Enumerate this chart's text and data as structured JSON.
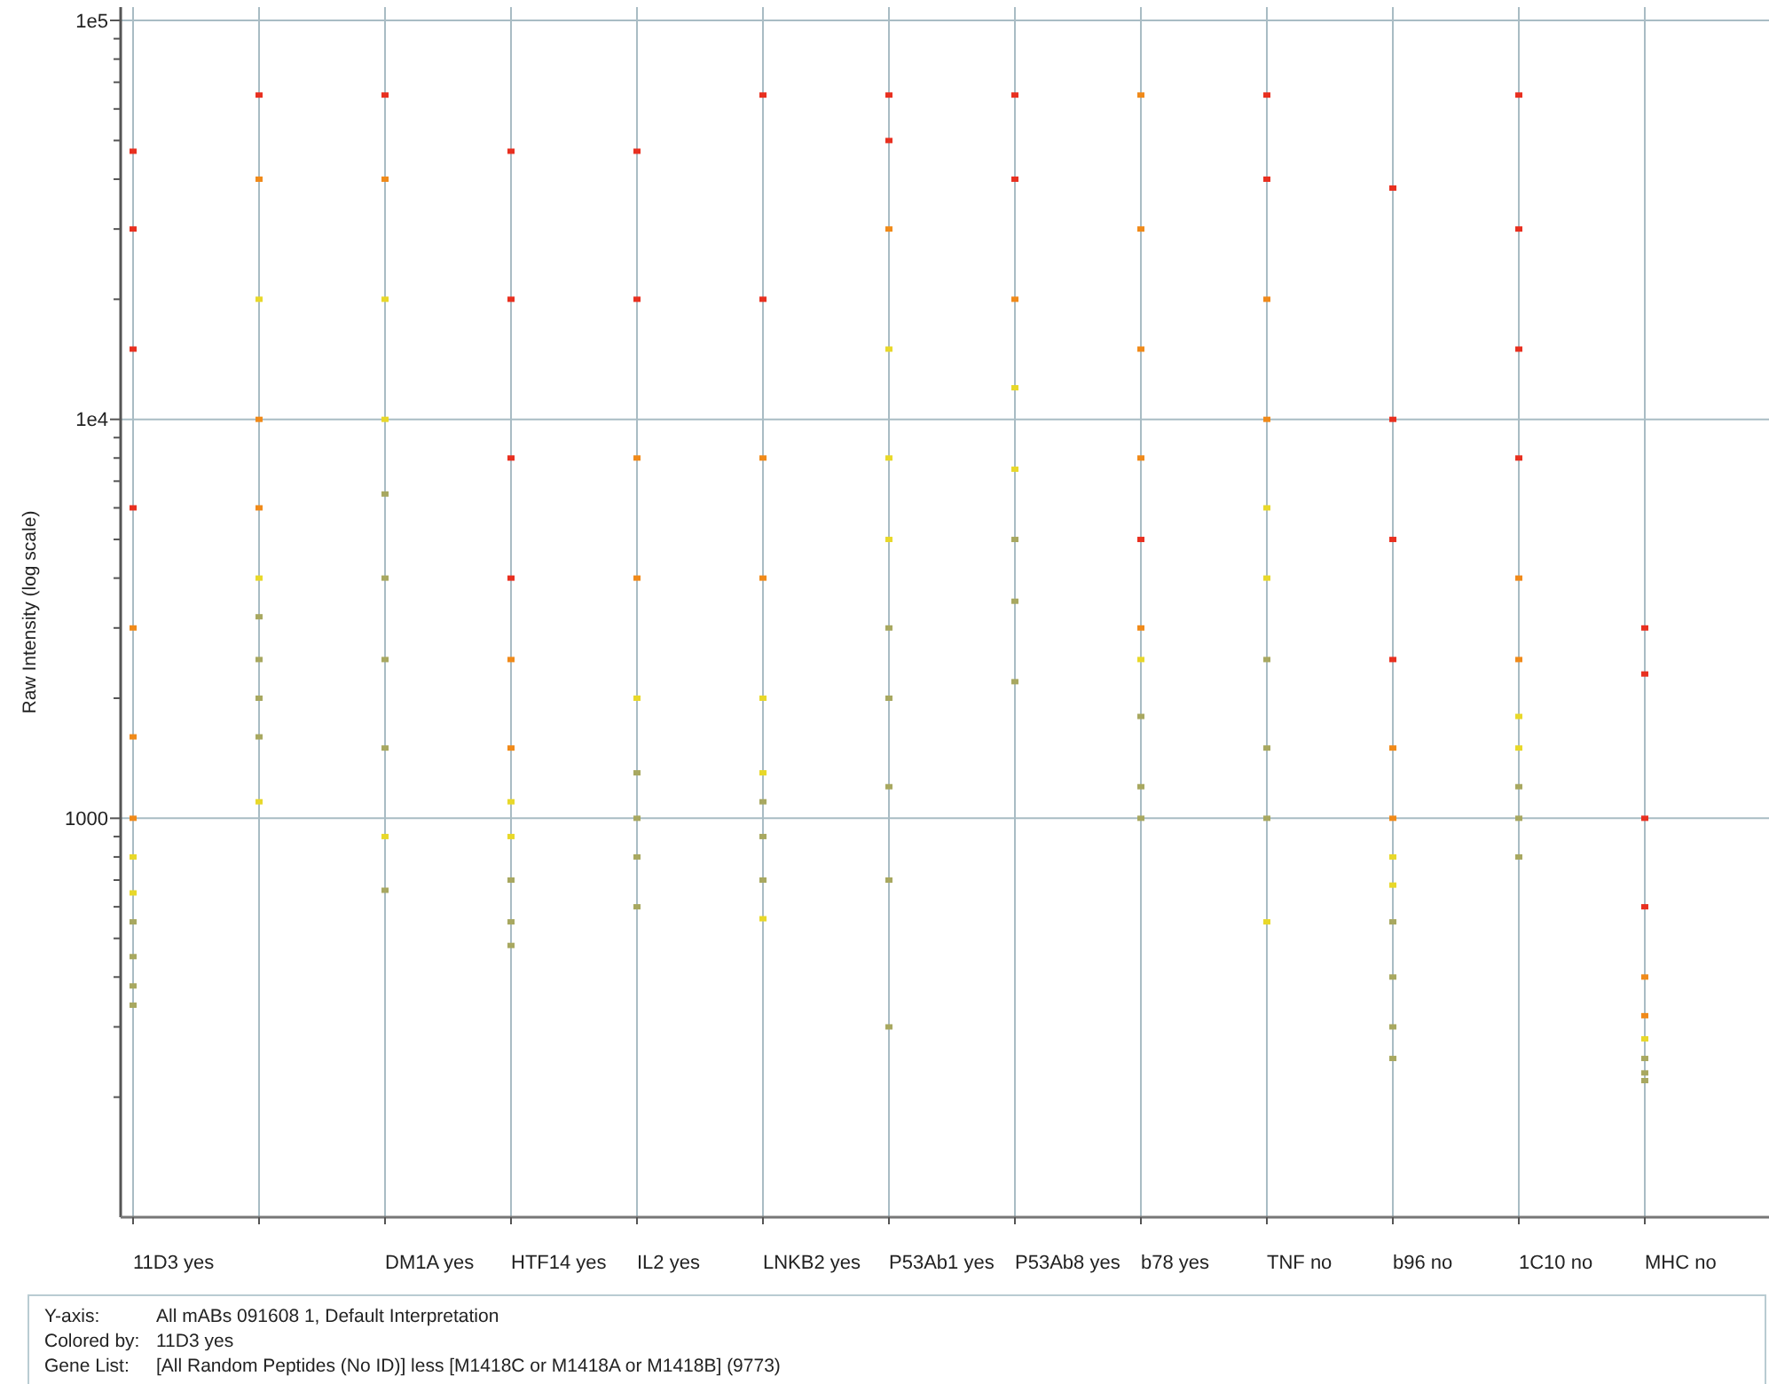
{
  "chart_data": {
    "type": "scatter",
    "ylabel": "Raw Intensity (log scale)",
    "log": true,
    "grid": true,
    "marker": "square",
    "categories": [
      "11D3 yes",
      null,
      "DM1A yes",
      "HTF14 yes",
      "IL2 yes",
      "LNKB2 yes",
      "P53Ab1 yes",
      "P53Ab8 yes",
      "b78 yes",
      "TNF no",
      "b96 no",
      "1C10 no",
      "MHC no"
    ],
    "ylim": [
      100,
      108000
    ],
    "yticks": [
      {
        "value": 200,
        "label": null
      },
      {
        "value": 300,
        "label": null
      },
      {
        "value": 400,
        "label": null
      },
      {
        "value": 500,
        "label": null
      },
      {
        "value": 600,
        "label": null
      },
      {
        "value": 700,
        "label": null
      },
      {
        "value": 800,
        "label": null
      },
      {
        "value": 900,
        "label": null
      },
      1000,
      {
        "value": 2000,
        "label": null
      },
      {
        "value": 3000,
        "label": null
      },
      {
        "value": 4000,
        "label": null
      },
      {
        "value": 5000,
        "label": null
      },
      {
        "value": 6000,
        "label": null
      },
      {
        "value": 7000,
        "label": null
      },
      {
        "value": 8000,
        "label": null
      },
      {
        "value": 9000,
        "label": null
      },
      {
        "value": 10000,
        "label": "1e4"
      },
      {
        "value": 20000,
        "label": null
      },
      {
        "value": 30000,
        "label": null
      },
      {
        "value": 40000,
        "label": null
      },
      {
        "value": 50000,
        "label": null
      },
      {
        "value": 60000,
        "label": null
      },
      {
        "value": 70000,
        "label": null
      },
      {
        "value": 80000,
        "label": null
      },
      {
        "value": 90000,
        "label": null
      },
      {
        "value": 100000,
        "label": "1e5"
      }
    ],
    "series": [
      {
        "values": [
          47000,
          65000,
          65000,
          47000,
          47000,
          65000,
          65000,
          65000,
          65000,
          65000,
          38000,
          65000,
          3000
        ],
        "colors": [
          "#e83020",
          "#e83020",
          "#e83020",
          "#e83020",
          "#e83020",
          "#e83020",
          "#e83020",
          "#e83020",
          "#f08a1a",
          "#e83020",
          "#e83020",
          "#e83020",
          "#e83020"
        ]
      },
      {
        "values": [
          30000,
          40000,
          40000,
          20000,
          20000,
          20000,
          50000,
          40000,
          30000,
          40000,
          10000,
          30000,
          2300
        ],
        "colors": [
          "#e83020",
          "#f08a1a",
          "#f08a1a",
          "#e83020",
          "#e83020",
          "#e83020",
          "#e83020",
          "#e83020",
          "#f08a1a",
          "#e83020",
          "#e83020",
          "#e83020",
          "#e83020"
        ]
      },
      {
        "values": [
          15000,
          20000,
          20000,
          8000,
          8000,
          8000,
          30000,
          20000,
          15000,
          20000,
          5000,
          15000,
          1000
        ],
        "colors": [
          "#e83020",
          "#e8d82a",
          "#e8d82a",
          "#e83020",
          "#f08a1a",
          "#f08a1a",
          "#f08a1a",
          "#f08a1a",
          "#f08a1a",
          "#f08a1a",
          "#e83020",
          "#e83020",
          "#e83020"
        ]
      },
      {
        "values": [
          6000,
          10000,
          10000,
          4000,
          4000,
          4000,
          15000,
          12000,
          8000,
          10000,
          2500,
          8000,
          600
        ],
        "colors": [
          "#e83020",
          "#f08a1a",
          "#e8d82a",
          "#e83020",
          "#f08a1a",
          "#f08a1a",
          "#e8d82a",
          "#e8d82a",
          "#f08a1a",
          "#f08a1a",
          "#e83020",
          "#e83020",
          "#e83020"
        ]
      },
      {
        "values": [
          3000,
          6000,
          6500,
          2500,
          2000,
          2000,
          8000,
          7500,
          5000,
          6000,
          1500,
          4000,
          400
        ],
        "colors": [
          "#f08a1a",
          "#f08a1a",
          "#a8a860",
          "#f08a1a",
          "#e8d82a",
          "#e8d82a",
          "#e8d82a",
          "#e8d82a",
          "#e83020",
          "#e8d82a",
          "#f08a1a",
          "#f08a1a",
          "#f08a1a"
        ]
      },
      {
        "values": [
          1600,
          4000,
          4000,
          1500,
          1300,
          1300,
          5000,
          5000,
          3000,
          4000,
          1000,
          2500,
          320
        ],
        "colors": [
          "#f08a1a",
          "#e8d82a",
          "#a8a860",
          "#f08a1a",
          "#a8a860",
          "#e8d82a",
          "#e8d82a",
          "#a8a860",
          "#f08a1a",
          "#e8d82a",
          "#f08a1a",
          "#f08a1a",
          "#f08a1a"
        ]
      },
      {
        "values": [
          1000,
          3200,
          2500,
          1100,
          1000,
          1100,
          3000,
          3500,
          2500,
          2500,
          800,
          1800,
          280
        ],
        "colors": [
          "#f08a1a",
          "#a8a860",
          "#a8a860",
          "#e8d82a",
          "#a8a860",
          "#a8a860",
          "#a8a860",
          "#a8a860",
          "#e8d82a",
          "#a8a860",
          "#e8d82a",
          "#e8d82a",
          "#e8d82a"
        ]
      },
      {
        "values": [
          800,
          2500,
          1500,
          900,
          800,
          900,
          2000,
          2200,
          1800,
          1500,
          680,
          1500,
          250
        ],
        "colors": [
          "#e8d82a",
          "#a8a860",
          "#a8a860",
          "#e8d82a",
          "#a8a860",
          "#a8a860",
          "#a8a860",
          "#a8a860",
          "#a8a860",
          "#a8a860",
          "#e8d82a",
          "#e8d82a",
          "#a8a860"
        ]
      },
      {
        "values": [
          650,
          2000,
          900,
          700,
          600,
          700,
          1200,
          null,
          1200,
          1000,
          550,
          1200,
          230
        ],
        "colors": [
          "#e8d82a",
          "#a8a860",
          "#e8d82a",
          "#a8a860",
          "#a8a860",
          "#a8a860",
          "#a8a860",
          null,
          "#a8a860",
          "#a8a860",
          "#a8a860",
          "#a8a860",
          "#a8a860"
        ]
      },
      {
        "values": [
          550,
          1600,
          660,
          550,
          null,
          560,
          700,
          null,
          1000,
          550,
          400,
          1000,
          220
        ],
        "colors": [
          "#a8a860",
          "#a8a860",
          "#a8a860",
          "#a8a860",
          null,
          "#e8d82a",
          "#a8a860",
          null,
          "#a8a860",
          "#e8d82a",
          "#a8a860",
          "#a8a860",
          "#a8a860"
        ]
      },
      {
        "values": [
          450,
          1100,
          null,
          480,
          null,
          null,
          300,
          null,
          null,
          null,
          300,
          800,
          null
        ],
        "colors": [
          "#a8a860",
          "#e8d82a",
          null,
          "#a8a860",
          null,
          null,
          "#a8a860",
          null,
          null,
          null,
          "#a8a860",
          "#a8a860",
          null
        ]
      },
      {
        "values": [
          380,
          null,
          null,
          null,
          null,
          null,
          null,
          null,
          null,
          null,
          250,
          null,
          null
        ],
        "colors": [
          "#a8a860",
          null,
          null,
          null,
          null,
          null,
          null,
          null,
          null,
          null,
          "#a8a860",
          null,
          null
        ]
      },
      {
        "values": [
          340,
          null,
          null,
          null,
          null,
          null,
          null,
          null,
          null,
          null,
          null,
          null,
          null
        ],
        "colors": [
          "#a8a860",
          null,
          null,
          null,
          null,
          null,
          null,
          null,
          null,
          null,
          null,
          null,
          null
        ]
      }
    ],
    "annotations": [
      "Y-axis:",
      "All mABs 091608 1, Default Interpretation",
      "Colored by:",
      "11D3 yes",
      "Gene List:",
      "[All Random Peptides (No ID)] less [M1418C or M1418A or M1418B] (9773)"
    ]
  }
}
